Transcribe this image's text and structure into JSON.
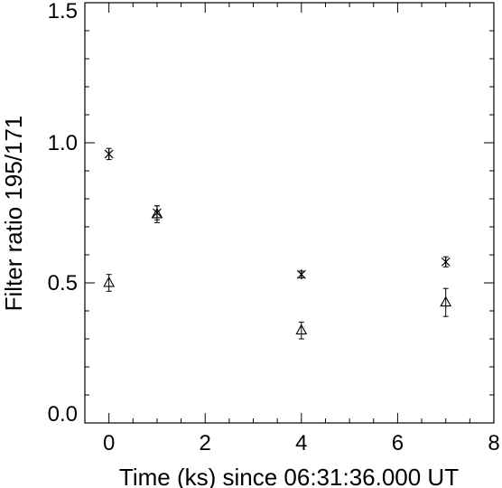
{
  "chart_data": {
    "type": "scatter",
    "title": "",
    "xlabel": "Time (ks) since 06:31:36.000 UT",
    "ylabel": "Filter ratio 195/171",
    "xlim": [
      -0.5,
      8
    ],
    "ylim": [
      0,
      1.5
    ],
    "x_ticks": [
      "0",
      "2",
      "4",
      "6",
      "8"
    ],
    "y_ticks": [
      "0.0",
      "0.5",
      "1.0",
      "1.5"
    ],
    "grid": false,
    "legend": "none",
    "series": [
      {
        "marker": "asterisk",
        "points": [
          {
            "x": 0,
            "y": 0.96,
            "err": 0.02
          },
          {
            "x": 1,
            "y": 0.75,
            "err": 0.025
          },
          {
            "x": 4,
            "y": 0.53,
            "err": 0.012
          },
          {
            "x": 7,
            "y": 0.575,
            "err": 0.018
          }
        ]
      },
      {
        "marker": "triangle",
        "points": [
          {
            "x": 0,
            "y": 0.5,
            "err": 0.03
          },
          {
            "x": 1,
            "y": 0.745,
            "err": 0.03
          },
          {
            "x": 4,
            "y": 0.33,
            "err": 0.03
          },
          {
            "x": 7,
            "y": 0.43,
            "err": 0.05
          }
        ]
      }
    ]
  }
}
